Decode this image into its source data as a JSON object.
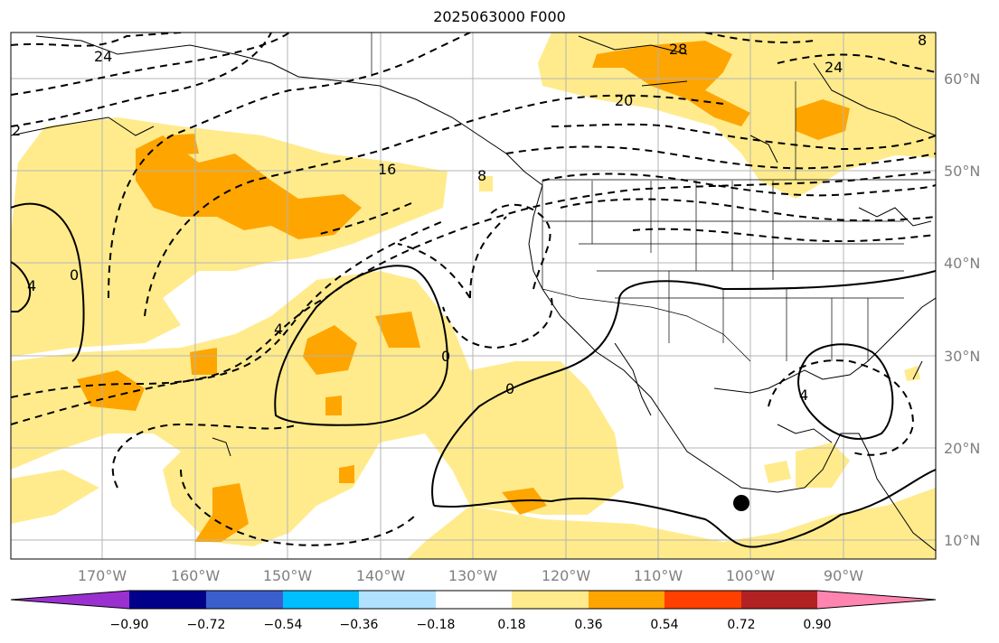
{
  "title": "2025063000 F000",
  "map": {
    "lon_ticks": [
      "170°W",
      "160°W",
      "150°W",
      "140°W",
      "130°W",
      "120°W",
      "110°W",
      "100°W",
      "90°W"
    ],
    "lat_ticks": [
      "60°N",
      "50°N",
      "40°N",
      "30°N",
      "20°N",
      "10°N"
    ],
    "contour_labels": [
      "24",
      "28",
      "24",
      "20",
      "2",
      "16",
      "8",
      "4",
      "4",
      "0",
      "0",
      "0",
      "4",
      "8"
    ],
    "marker": "storm-center-dot"
  },
  "colorbar": {
    "ticks": [
      "−0.90",
      "−0.72",
      "−0.54",
      "−0.36",
      "−0.18",
      "0.18",
      "0.36",
      "0.54",
      "0.72",
      "0.90"
    ],
    "colors": [
      "#9b30d0",
      "#00008b",
      "#3a5fcd",
      "#00bfff",
      "#b0e2ff",
      "#ffffff",
      "#ffeb8c",
      "#ffa500",
      "#ff4000",
      "#b22222",
      "#ff85b0"
    ]
  }
}
